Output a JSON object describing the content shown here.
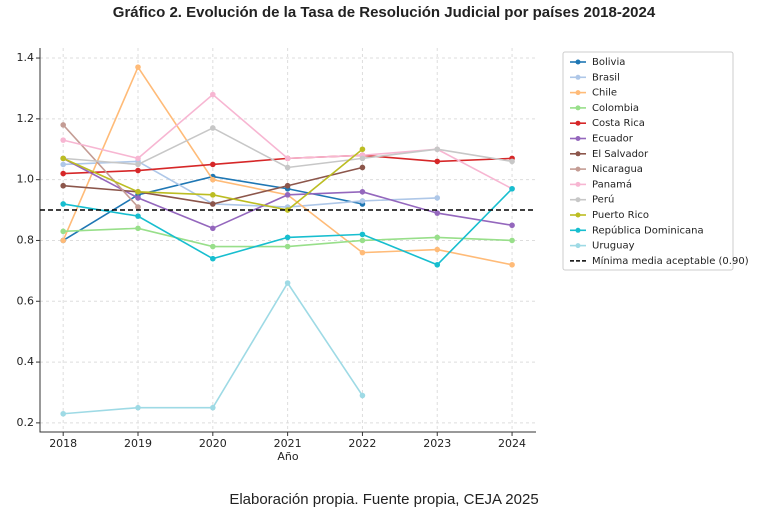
{
  "chart_data": {
    "type": "line",
    "title": "Gráfico 2. Evolución de la Tasa de Resolución Judicial por países 2018-2024",
    "x_label": "Año",
    "caption": "Elaboración propia. Fuente propia, CEJA 2025",
    "x": [
      2018,
      2019,
      2020,
      2021,
      2022,
      2023,
      2024
    ],
    "xlim": [
      2017.69,
      2024.32
    ],
    "xticks": [
      2018,
      2019,
      2020,
      2021,
      2022,
      2023,
      2024
    ],
    "ylim": [
      0.17,
      1.433
    ],
    "yticks": [
      0.2,
      0.4,
      0.6,
      0.8,
      {
        "value": 1,
        "label": "1.0"
      },
      1.2,
      1.4
    ],
    "grid": true,
    "legend": "outside-right",
    "reference_line": {
      "value": 0.9,
      "label": "Mínima media aceptable (0.90)",
      "color": "#000000"
    },
    "series": [
      {
        "name": "Bolivia",
        "color": "#1f77b4",
        "values": [
          0.8,
          0.95,
          1.01,
          0.97,
          0.92,
          null,
          null
        ]
      },
      {
        "name": "Brasil",
        "color": "#aec7e8",
        "values": [
          1.05,
          1.06,
          0.92,
          0.91,
          0.93,
          0.94,
          null
        ]
      },
      {
        "name": "Chile",
        "color": "#ffbb78",
        "values": [
          0.8,
          1.37,
          1.0,
          0.95,
          0.76,
          0.77,
          0.72
        ]
      },
      {
        "name": "Colombia",
        "color": "#98df8a",
        "values": [
          0.83,
          0.84,
          0.78,
          0.78,
          0.8,
          0.81,
          0.8
        ]
      },
      {
        "name": "Costa Rica",
        "color": "#d62728",
        "values": [
          1.02,
          1.03,
          1.05,
          1.07,
          1.08,
          1.06,
          1.07
        ]
      },
      {
        "name": "Ecuador",
        "color": "#9467bd",
        "values": [
          1.07,
          0.94,
          0.84,
          0.95,
          0.96,
          0.89,
          0.85
        ]
      },
      {
        "name": "El Salvador",
        "color": "#8c564b",
        "values": [
          0.98,
          0.96,
          0.92,
          0.98,
          1.04,
          null,
          null
        ]
      },
      {
        "name": "Nicaragua",
        "color": "#c49c94",
        "values": [
          1.18,
          0.91,
          null,
          null,
          null,
          null,
          null
        ]
      },
      {
        "name": "Panamá",
        "color": "#f7b6d2",
        "values": [
          1.13,
          1.07,
          1.28,
          1.07,
          1.08,
          1.1,
          0.97
        ]
      },
      {
        "name": "Perú",
        "color": "#c7c7c7",
        "values": [
          1.07,
          1.05,
          1.17,
          1.04,
          1.07,
          1.1,
          1.06
        ]
      },
      {
        "name": "Puerto Rico",
        "color": "#bcbd22",
        "values": [
          1.07,
          0.96,
          0.95,
          0.9,
          1.1,
          null,
          null
        ]
      },
      {
        "name": "República Dominicana",
        "color": "#17becf",
        "values": [
          0.92,
          0.88,
          0.74,
          0.81,
          0.82,
          0.72,
          0.97
        ]
      },
      {
        "name": "Uruguay",
        "color": "#9edae5",
        "values": [
          0.23,
          0.25,
          0.25,
          0.66,
          0.29,
          null,
          null
        ]
      }
    ]
  }
}
